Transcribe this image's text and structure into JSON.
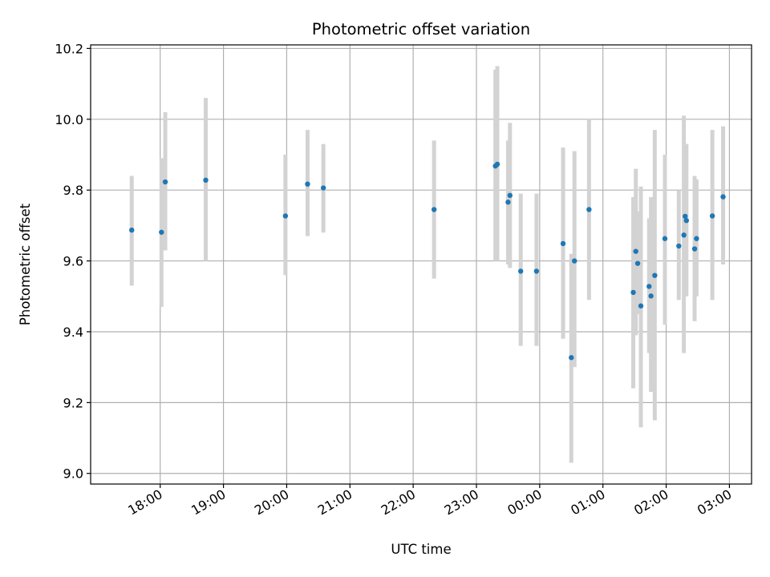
{
  "chart_data": {
    "type": "scatter",
    "title": "Photometric offset variation",
    "xlabel": "UTC time",
    "ylabel": "Photometric offset",
    "xlim_hours": [
      16.9,
      27.35
    ],
    "ylim": [
      8.97,
      10.21
    ],
    "grid": true,
    "x_ticks": [
      {
        "hour": 18,
        "label": "18:00"
      },
      {
        "hour": 19,
        "label": "19:00"
      },
      {
        "hour": 20,
        "label": "20:00"
      },
      {
        "hour": 21,
        "label": "21:00"
      },
      {
        "hour": 22,
        "label": "22:00"
      },
      {
        "hour": 23,
        "label": "23:00"
      },
      {
        "hour": 24,
        "label": "00:00"
      },
      {
        "hour": 25,
        "label": "01:00"
      },
      {
        "hour": 26,
        "label": "02:00"
      },
      {
        "hour": 27,
        "label": "03:00"
      }
    ],
    "y_ticks": [
      {
        "value": 9.0,
        "label": "9.0"
      },
      {
        "value": 9.2,
        "label": "9.2"
      },
      {
        "value": 9.4,
        "label": "9.4"
      },
      {
        "value": 9.6,
        "label": "9.6"
      },
      {
        "value": 9.8,
        "label": "9.8"
      },
      {
        "value": 10.0,
        "label": "10.0"
      },
      {
        "value": 10.2,
        "label": "10.2"
      }
    ],
    "colors": {
      "point": "#1f77b4",
      "errorbar": "#d3d3d3",
      "grid": "#b0b0b0"
    },
    "points": [
      {
        "t": 17.55,
        "y": 9.687,
        "lo": 9.53,
        "hi": 9.84
      },
      {
        "t": 18.02,
        "y": 9.681,
        "lo": 9.47,
        "hi": 9.89
      },
      {
        "t": 18.08,
        "y": 9.823,
        "lo": 9.63,
        "hi": 10.02
      },
      {
        "t": 18.72,
        "y": 9.828,
        "lo": 9.6,
        "hi": 10.06
      },
      {
        "t": 19.98,
        "y": 9.727,
        "lo": 9.56,
        "hi": 9.9
      },
      {
        "t": 20.33,
        "y": 9.817,
        "lo": 9.67,
        "hi": 9.97
      },
      {
        "t": 20.58,
        "y": 9.806,
        "lo": 9.68,
        "hi": 9.93
      },
      {
        "t": 22.33,
        "y": 9.745,
        "lo": 9.55,
        "hi": 9.94
      },
      {
        "t": 23.3,
        "y": 9.868,
        "lo": 9.6,
        "hi": 10.14
      },
      {
        "t": 23.33,
        "y": 9.873,
        "lo": 9.6,
        "hi": 10.15
      },
      {
        "t": 23.5,
        "y": 9.766,
        "lo": 9.59,
        "hi": 9.94
      },
      {
        "t": 23.53,
        "y": 9.785,
        "lo": 9.58,
        "hi": 9.99
      },
      {
        "t": 23.7,
        "y": 9.571,
        "lo": 9.36,
        "hi": 9.79
      },
      {
        "t": 23.95,
        "y": 9.571,
        "lo": 9.36,
        "hi": 9.79
      },
      {
        "t": 24.37,
        "y": 9.649,
        "lo": 9.38,
        "hi": 9.92
      },
      {
        "t": 24.5,
        "y": 9.327,
        "lo": 9.03,
        "hi": 9.62
      },
      {
        "t": 24.55,
        "y": 9.6,
        "lo": 9.3,
        "hi": 9.91
      },
      {
        "t": 24.78,
        "y": 9.745,
        "lo": 9.49,
        "hi": 10.0
      },
      {
        "t": 25.48,
        "y": 9.511,
        "lo": 9.24,
        "hi": 9.78
      },
      {
        "t": 25.52,
        "y": 9.627,
        "lo": 9.39,
        "hi": 9.86
      },
      {
        "t": 25.55,
        "y": 9.593,
        "lo": 9.45,
        "hi": 9.74
      },
      {
        "t": 25.6,
        "y": 9.473,
        "lo": 9.13,
        "hi": 9.81
      },
      {
        "t": 25.73,
        "y": 9.528,
        "lo": 9.34,
        "hi": 9.72
      },
      {
        "t": 25.76,
        "y": 9.501,
        "lo": 9.23,
        "hi": 9.78
      },
      {
        "t": 25.82,
        "y": 9.559,
        "lo": 9.15,
        "hi": 9.97
      },
      {
        "t": 25.98,
        "y": 9.663,
        "lo": 9.42,
        "hi": 9.9
      },
      {
        "t": 26.2,
        "y": 9.642,
        "lo": 9.49,
        "hi": 9.8
      },
      {
        "t": 26.28,
        "y": 9.673,
        "lo": 9.34,
        "hi": 10.01
      },
      {
        "t": 26.3,
        "y": 9.726,
        "lo": 9.51,
        "hi": 9.93
      },
      {
        "t": 26.32,
        "y": 9.714,
        "lo": 9.5,
        "hi": 9.93
      },
      {
        "t": 26.45,
        "y": 9.634,
        "lo": 9.43,
        "hi": 9.84
      },
      {
        "t": 26.48,
        "y": 9.663,
        "lo": 9.5,
        "hi": 9.83
      },
      {
        "t": 26.73,
        "y": 9.727,
        "lo": 9.49,
        "hi": 9.97
      },
      {
        "t": 26.9,
        "y": 9.781,
        "lo": 9.59,
        "hi": 9.98
      }
    ]
  }
}
